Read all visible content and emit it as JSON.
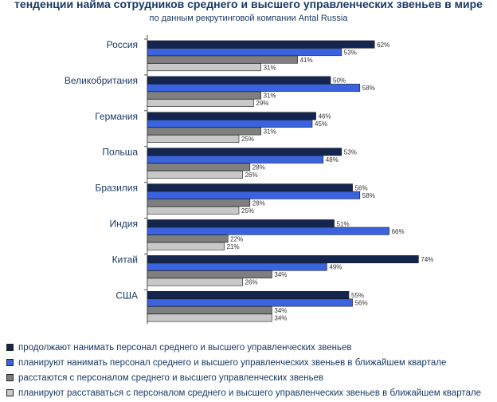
{
  "chart_data": {
    "type": "bar",
    "orientation": "horizontal",
    "title": "тенденции найма сотрудников среднего и высшего управленческих звеньев в мире",
    "subtitle": "по данным рекрутинговой компании Antal Russia",
    "categories": [
      "Россия",
      "Великобритания",
      "Германия",
      "Польша",
      "Бразилия",
      "Индия",
      "Китай",
      "США"
    ],
    "value_suffix": "%",
    "xlim": [
      0,
      100
    ],
    "legend_position": "bottom",
    "series": [
      {
        "name": "продолжают нанимать персонал среднего и высшего управленческих звеньев",
        "color": "#14264f",
        "values": [
          62,
          50,
          46,
          53,
          56,
          51,
          74,
          55
        ]
      },
      {
        "name": "планируют нанимать персонал среднего и высшего управленческих звеньев в ближайшем квартале",
        "color": "#3a63e0",
        "values": [
          53,
          58,
          45,
          48,
          58,
          66,
          49,
          56
        ]
      },
      {
        "name": "расстаются с персоналом среднего и высшего управленческих звеньев",
        "color": "#7f7f7f",
        "values": [
          41,
          31,
          31,
          28,
          28,
          22,
          34,
          34
        ]
      },
      {
        "name": "планируют расставаться с персоналом среднего и высшего управленческих звеньев в ближайшем квартале",
        "color": "#c8c8c8",
        "values": [
          31,
          29,
          25,
          26,
          25,
          21,
          26,
          34
        ]
      }
    ]
  }
}
